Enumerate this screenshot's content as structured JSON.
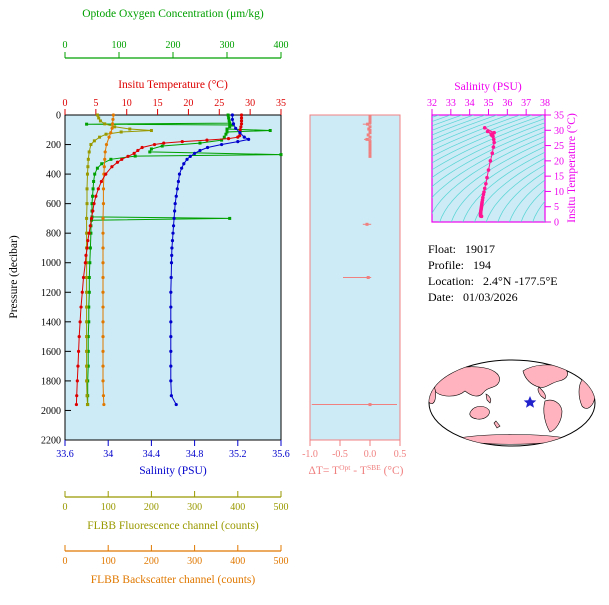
{
  "colors": {
    "plot_bg": "#CCEBF6",
    "oxygen": "#00A000",
    "temperature": "#DD0000",
    "salinity": "#0000CC",
    "fluorescence": "#999900",
    "backscatter": "#E07800",
    "delta": "#F08080",
    "ts_axis": "#EE00EE",
    "ts_points": "#FF1493",
    "contours": "#55D4D4",
    "axis_black": "#000000",
    "map_land": "#FFB3BE",
    "map_star": "#2222CC"
  },
  "main_plot": {
    "pressure_label": "Pressure (decibar)",
    "pressure_ticks": [
      "0",
      "200",
      "400",
      "600",
      "800",
      "1000",
      "1200",
      "1400",
      "1600",
      "1800",
      "2000",
      "2200"
    ],
    "oxygen_axis": {
      "label": "Optode Oxygen Concentration (μm/kg)",
      "ticks": [
        "0",
        "100",
        "200",
        "300",
        "400"
      ]
    },
    "temperature_axis": {
      "label": "Insitu Temperature (°C)",
      "ticks": [
        "0",
        "5",
        "10",
        "15",
        "20",
        "25",
        "30",
        "35"
      ]
    },
    "salinity_axis": {
      "label": "Salinity (PSU)",
      "ticks": [
        "33.6",
        "34",
        "34.4",
        "34.8",
        "35.2",
        "35.6"
      ]
    },
    "fluorescence_axis": {
      "label": "FLBB Fluorescence channel (counts)",
      "ticks": [
        "0",
        "100",
        "200",
        "300",
        "400",
        "500"
      ]
    },
    "backscatter_axis": {
      "label": "FLBB Backscatter channel (counts)",
      "ticks": [
        "0",
        "100",
        "200",
        "300",
        "400",
        "500"
      ]
    }
  },
  "delta_plot": {
    "ticks": [
      "-1.0",
      "-0.5",
      "0.0",
      "0.5"
    ],
    "label_pre": "ΔT= T",
    "label_sup1": "Opt",
    "label_mid": " - T",
    "label_sup2": "SBE",
    "label_post": " (°C)"
  },
  "ts_plot": {
    "top_label": "Salinity (PSU)",
    "right_label": "Insitu Temperature (°C)",
    "s_ticks": [
      "32",
      "33",
      "34",
      "35",
      "36",
      "37",
      "38"
    ],
    "t_ticks": [
      "0",
      "5",
      "10",
      "15",
      "20",
      "25",
      "30",
      "35"
    ]
  },
  "info": {
    "float_label": "Float:",
    "float_value": "19017",
    "profile_label": "Profile:",
    "profile_value": "194",
    "location_label": "Location:",
    "location_value": "2.4°N  -177.5°E",
    "date_label": "Date:",
    "date_value": "01/03/2026"
  },
  "chart_data": [
    {
      "type": "line",
      "title": "Float profile plot",
      "ylabel": "Pressure (decibar)",
      "ylim": [
        0,
        2200
      ],
      "y_inverted": true,
      "series": [
        {
          "name": "oxygen",
          "label": "Optode Oxygen Concentration (μm/kg)",
          "x_range": [
            0,
            400
          ],
          "marker": "square",
          "points": [
            [
              0,
              302
            ],
            [
              20,
              303
            ],
            [
              40,
              304
            ],
            [
              55,
              305
            ],
            [
              62,
              40
            ],
            [
              68,
              310
            ],
            [
              80,
              305
            ],
            [
              95,
              300
            ],
            [
              105,
              380
            ],
            [
              115,
              300
            ],
            [
              130,
              298
            ],
            [
              150,
              295
            ],
            [
              170,
              290
            ],
            [
              190,
              250
            ],
            [
              210,
              180
            ],
            [
              230,
              160
            ],
            [
              250,
              157
            ],
            [
              268,
              400
            ],
            [
              278,
              130
            ],
            [
              300,
              85
            ],
            [
              330,
              68
            ],
            [
              360,
              60
            ],
            [
              400,
              55
            ],
            [
              450,
              53
            ],
            [
              500,
              52
            ],
            [
              550,
              51
            ],
            [
              600,
              50
            ],
            [
              650,
              50
            ],
            [
              690,
              50
            ],
            [
              700,
              305
            ],
            [
              712,
              49
            ],
            [
              750,
              48
            ],
            [
              800,
              48
            ],
            [
              900,
              47
            ],
            [
              1000,
              46
            ],
            [
              1100,
              45
            ],
            [
              1200,
              45
            ],
            [
              1300,
              44
            ],
            [
              1400,
              44
            ],
            [
              1500,
              43
            ],
            [
              1600,
              43
            ],
            [
              1700,
              43
            ],
            [
              1800,
              42
            ],
            [
              1900,
              42
            ],
            [
              1960,
              42
            ]
          ]
        },
        {
          "name": "fluorescence",
          "label": "FLBB Fluorescence channel (counts)",
          "x_range": [
            0,
            500
          ],
          "marker": "square",
          "points": [
            [
              0,
              75
            ],
            [
              20,
              78
            ],
            [
              40,
              82
            ],
            [
              60,
              92
            ],
            [
              80,
              115
            ],
            [
              95,
              150
            ],
            [
              105,
              200
            ],
            [
              115,
              130
            ],
            [
              130,
              95
            ],
            [
              150,
              80
            ],
            [
              175,
              68
            ],
            [
              200,
              60
            ],
            [
              250,
              56
            ],
            [
              300,
              54
            ],
            [
              350,
              53
            ],
            [
              400,
              52
            ],
            [
              500,
              51
            ],
            [
              600,
              51
            ],
            [
              700,
              50
            ],
            [
              800,
              50
            ],
            [
              900,
              50
            ],
            [
              1000,
              50
            ],
            [
              1100,
              50
            ],
            [
              1200,
              50
            ],
            [
              1300,
              50
            ],
            [
              1400,
              50
            ],
            [
              1500,
              50
            ],
            [
              1600,
              50
            ],
            [
              1700,
              50
            ],
            [
              1800,
              50
            ],
            [
              1900,
              51
            ],
            [
              1960,
              52
            ]
          ]
        },
        {
          "name": "backscatter",
          "label": "FLBB Backscatter channel (counts)",
          "x_range": [
            0,
            500
          ],
          "marker": "circle",
          "points": [
            [
              0,
              112
            ],
            [
              30,
              111
            ],
            [
              60,
              110
            ],
            [
              90,
              109
            ],
            [
              120,
              106
            ],
            [
              150,
              102
            ],
            [
              200,
              96
            ],
            [
              250,
              93
            ],
            [
              300,
              92
            ],
            [
              350,
              91
            ],
            [
              400,
              90
            ],
            [
              500,
              89
            ],
            [
              600,
              89
            ],
            [
              700,
              88
            ],
            [
              800,
              88
            ],
            [
              900,
              88
            ],
            [
              1000,
              88
            ],
            [
              1100,
              88
            ],
            [
              1200,
              88
            ],
            [
              1300,
              88
            ],
            [
              1400,
              88
            ],
            [
              1500,
              88
            ],
            [
              1600,
              88
            ],
            [
              1700,
              88
            ],
            [
              1800,
              88
            ],
            [
              1900,
              89
            ],
            [
              1960,
              90
            ]
          ]
        },
        {
          "name": "temperature",
          "label": "Insitu Temperature (°C)",
          "x_range": [
            0,
            35
          ],
          "marker": "circle",
          "points": [
            [
              0,
              28.6
            ],
            [
              20,
              28.6
            ],
            [
              40,
              28.6
            ],
            [
              60,
              28.6
            ],
            [
              80,
              28.5
            ],
            [
              100,
              28.4
            ],
            [
              120,
              28.35
            ],
            [
              140,
              28.3
            ],
            [
              150,
              28.0
            ],
            [
              160,
              26.5
            ],
            [
              170,
              23.0
            ],
            [
              180,
              19.0
            ],
            [
              190,
              16.0
            ],
            [
              200,
              14.5
            ],
            [
              220,
              12.5
            ],
            [
              240,
              11.8
            ],
            [
              260,
              11.2
            ],
            [
              280,
              10.2
            ],
            [
              300,
              9.2
            ],
            [
              320,
              8.5
            ],
            [
              350,
              7.6
            ],
            [
              400,
              6.6
            ],
            [
              450,
              5.9
            ],
            [
              500,
              5.4
            ],
            [
              550,
              5.0
            ],
            [
              600,
              4.7
            ],
            [
              650,
              4.5
            ],
            [
              700,
              4.3
            ],
            [
              750,
              4.1
            ],
            [
              800,
              3.9
            ],
            [
              850,
              3.7
            ],
            [
              900,
              3.6
            ],
            [
              950,
              3.4
            ],
            [
              1000,
              3.3
            ],
            [
              1100,
              3.0
            ],
            [
              1200,
              2.8
            ],
            [
              1300,
              2.6
            ],
            [
              1400,
              2.45
            ],
            [
              1500,
              2.3
            ],
            [
              1600,
              2.2
            ],
            [
              1700,
              2.1
            ],
            [
              1800,
              2.0
            ],
            [
              1900,
              1.9
            ],
            [
              1960,
              1.85
            ]
          ]
        },
        {
          "name": "salinity",
          "label": "Salinity (PSU)",
          "x_range": [
            33.6,
            35.6
          ],
          "marker": "circle",
          "points": [
            [
              0,
              35.15
            ],
            [
              30,
              35.15
            ],
            [
              60,
              35.16
            ],
            [
              90,
              35.18
            ],
            [
              120,
              35.22
            ],
            [
              150,
              35.26
            ],
            [
              165,
              35.3
            ],
            [
              180,
              35.2
            ],
            [
              200,
              35.05
            ],
            [
              220,
              34.92
            ],
            [
              240,
              34.85
            ],
            [
              260,
              34.8
            ],
            [
              280,
              34.76
            ],
            [
              300,
              34.73
            ],
            [
              330,
              34.7
            ],
            [
              360,
              34.68
            ],
            [
              400,
              34.66
            ],
            [
              450,
              34.65
            ],
            [
              500,
              34.64
            ],
            [
              550,
              34.63
            ],
            [
              600,
              34.62
            ],
            [
              650,
              34.615
            ],
            [
              700,
              34.61
            ],
            [
              750,
              34.605
            ],
            [
              800,
              34.6
            ],
            [
              850,
              34.595
            ],
            [
              900,
              34.59
            ],
            [
              950,
              34.588
            ],
            [
              1000,
              34.586
            ],
            [
              1100,
              34.583
            ],
            [
              1200,
              34.58
            ],
            [
              1300,
              34.58
            ],
            [
              1400,
              34.58
            ],
            [
              1500,
              34.58
            ],
            [
              1600,
              34.58
            ],
            [
              1700,
              34.58
            ],
            [
              1800,
              34.58
            ],
            [
              1900,
              34.585
            ],
            [
              1960,
              34.63
            ]
          ]
        }
      ]
    },
    {
      "type": "scatter",
      "xlabel": "ΔT= T^Opt - T^SBE (°C)",
      "xlim": [
        -1.0,
        0.5
      ],
      "ylabel": "Pressure (decibar)",
      "ylim": [
        0,
        2200
      ],
      "points": [
        [
          10,
          0
        ],
        [
          30,
          0
        ],
        [
          50,
          0
        ],
        [
          62,
          -0.04
        ],
        [
          80,
          0
        ],
        [
          95,
          -0.02
        ],
        [
          105,
          0
        ],
        [
          120,
          0
        ],
        [
          135,
          -0.03
        ],
        [
          150,
          0
        ],
        [
          165,
          -0.05
        ],
        [
          180,
          0
        ],
        [
          200,
          0
        ],
        [
          220,
          0
        ],
        [
          240,
          0
        ],
        [
          260,
          0
        ],
        [
          280,
          0
        ],
        [
          740,
          -0.05
        ],
        [
          1100,
          -0.03
        ],
        [
          1960,
          0
        ]
      ],
      "spikes": [
        [
          62,
          -0.12,
          0.02
        ],
        [
          165,
          -0.1,
          0.02
        ],
        [
          740,
          -0.12,
          0.02
        ],
        [
          1100,
          -0.45,
          0.02
        ],
        [
          1960,
          -0.97,
          0.45
        ]
      ]
    },
    {
      "type": "scatter",
      "xlabel": "Salinity (PSU)",
      "ylabel": "Insitu Temperature (°C)",
      "xlim": [
        32,
        38
      ],
      "ylim": [
        0,
        35
      ],
      "points": [
        [
          34.8,
          30.8
        ],
        [
          35.3,
          29.2
        ],
        [
          34.95,
          29.6
        ],
        [
          35.15,
          28.6
        ],
        [
          35.16,
          28.5
        ],
        [
          35.18,
          28.4
        ],
        [
          35.2,
          28.3
        ],
        [
          35.24,
          28.0
        ],
        [
          35.28,
          27.0
        ],
        [
          35.3,
          26.0
        ],
        [
          35.26,
          24.5
        ],
        [
          35.2,
          22.5
        ],
        [
          35.1,
          20.0
        ],
        [
          35.0,
          17.0
        ],
        [
          34.92,
          14.5
        ],
        [
          34.86,
          12.5
        ],
        [
          34.8,
          11.0
        ],
        [
          34.76,
          9.8
        ],
        [
          34.73,
          9.0
        ],
        [
          34.7,
          8.0
        ],
        [
          34.68,
          7.2
        ],
        [
          34.66,
          6.5
        ],
        [
          34.65,
          6.0
        ],
        [
          34.64,
          5.5
        ],
        [
          34.63,
          5.1
        ],
        [
          34.62,
          4.7
        ],
        [
          34.61,
          4.3
        ],
        [
          34.6,
          3.9
        ],
        [
          34.59,
          3.5
        ],
        [
          34.585,
          3.2
        ],
        [
          34.58,
          2.9
        ],
        [
          34.58,
          2.6
        ],
        [
          34.58,
          2.3
        ],
        [
          34.58,
          2.1
        ],
        [
          34.585,
          1.95
        ],
        [
          34.63,
          1.85
        ]
      ]
    }
  ]
}
